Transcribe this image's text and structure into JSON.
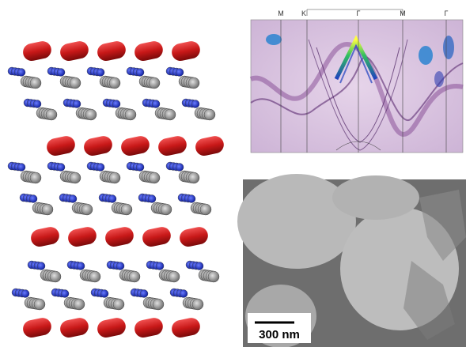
{
  "arpes": {
    "k_labels": [
      "M",
      "K",
      "Γ",
      "M",
      "Γ"
    ]
  },
  "tem": {
    "scale_bar": "300 nm"
  }
}
